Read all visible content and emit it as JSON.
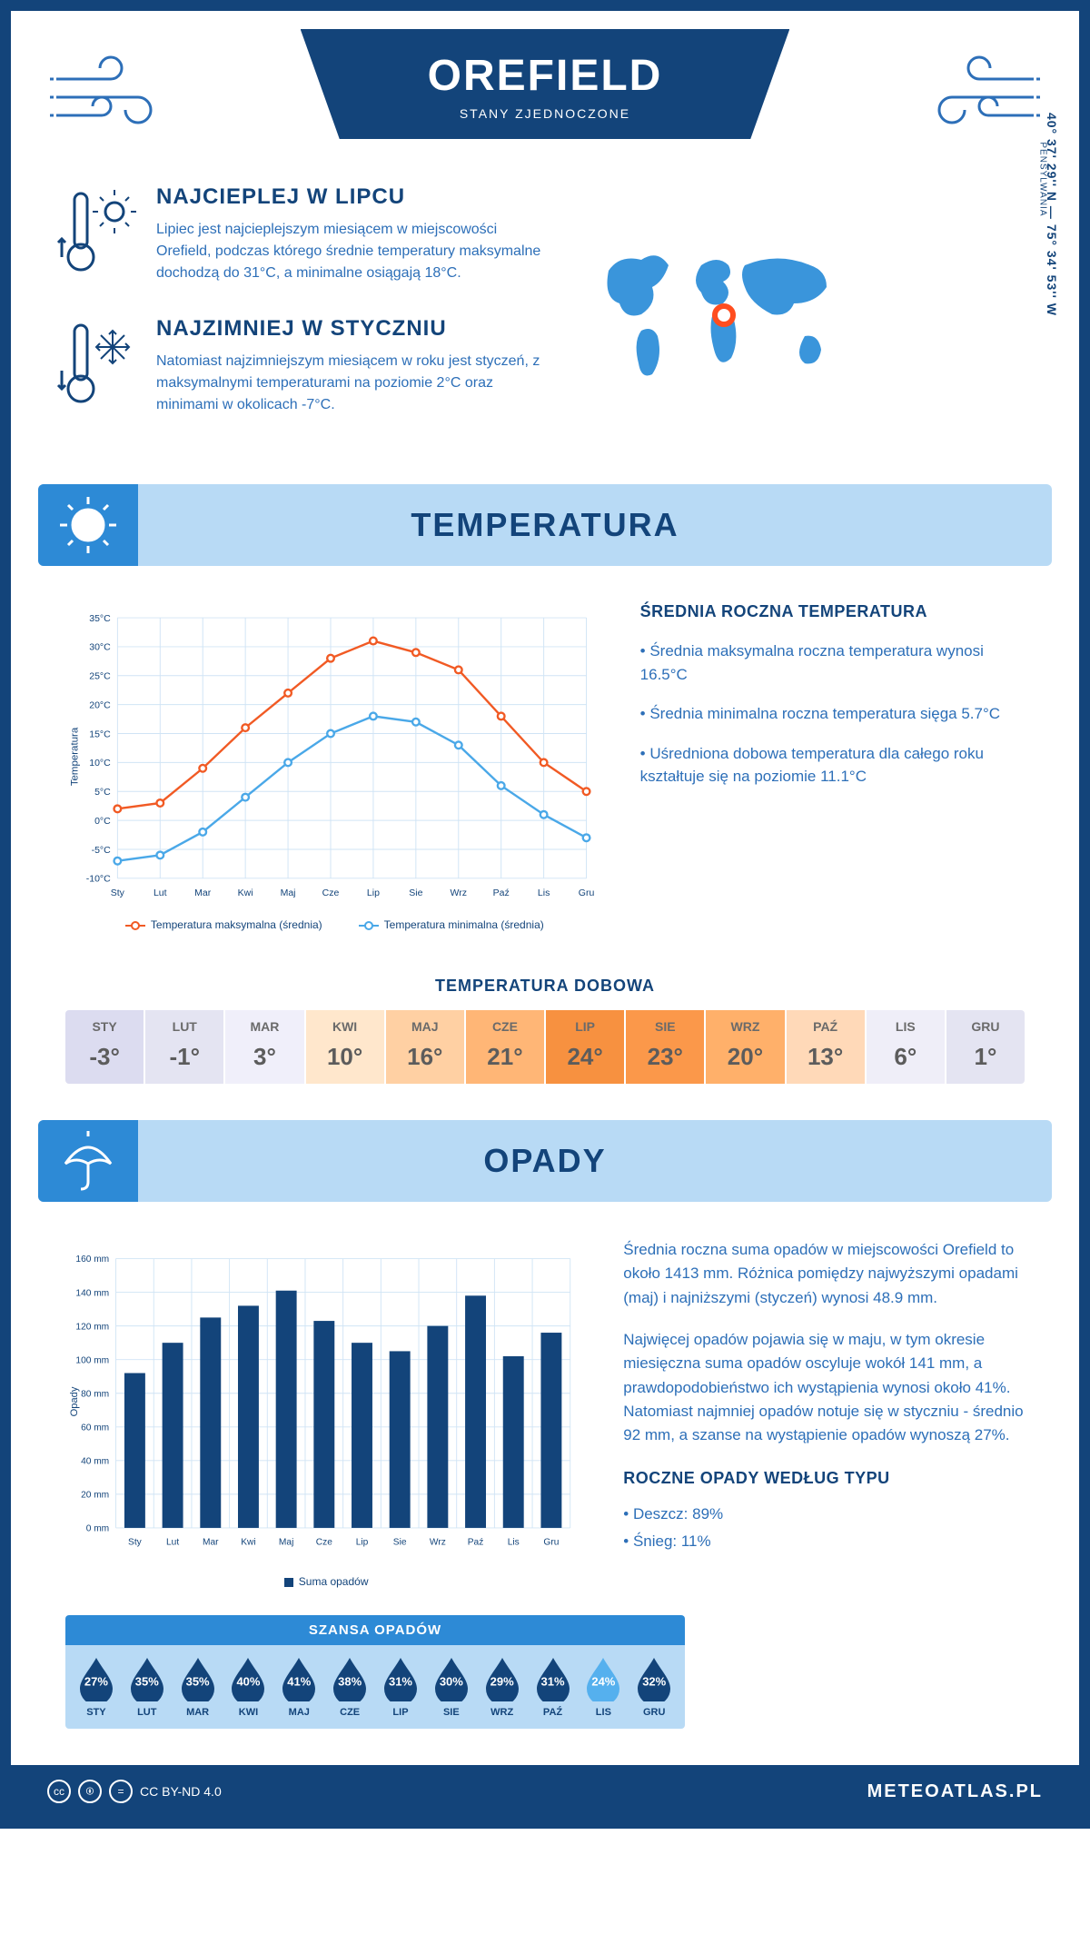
{
  "header": {
    "title": "OREFIELD",
    "subtitle": "STANY ZJEDNOCZONE"
  },
  "location": {
    "region_label": "PENSYLWANIA",
    "coords": "40° 37' 29'' N — 75° 34' 53'' W",
    "marker_color": "#ff4d1f"
  },
  "facts": {
    "warm": {
      "title": "NAJCIEPLEJ W LIPCU",
      "text": "Lipiec jest najcieplejszym miesiącem w miejscowości Orefield, podczas którego średnie temperatury maksymalne dochodzą do 31°C, a minimalne osiągają 18°C."
    },
    "cold": {
      "title": "NAJZIMNIEJ W STYCZNIU",
      "text": "Natomiast najzimniejszym miesiącem w roku jest styczeń, z maksymalnymi temperaturami na poziomie 2°C oraz minimami w okolicach -7°C."
    }
  },
  "months_short": [
    "Sty",
    "Lut",
    "Mar",
    "Kwi",
    "Maj",
    "Cze",
    "Lip",
    "Sie",
    "Wrz",
    "Paź",
    "Lis",
    "Gru"
  ],
  "months_upper": [
    "STY",
    "LUT",
    "MAR",
    "KWI",
    "MAJ",
    "CZE",
    "LIP",
    "SIE",
    "WRZ",
    "PAŹ",
    "LIS",
    "GRU"
  ],
  "temp_section": {
    "heading": "TEMPERATURA",
    "side_title": "ŚREDNIA ROCZNA TEMPERATURA",
    "bullets": [
      "• Średnia maksymalna roczna temperatura wynosi 16.5°C",
      "• Średnia minimalna roczna temperatura sięga 5.7°C",
      "• Uśredniona dobowa temperatura dla całego roku kształtuje się na poziomie 11.1°C"
    ],
    "chart": {
      "type": "line",
      "y_title": "Temperatura",
      "y_min": -10,
      "y_max": 35,
      "y_step": 5,
      "y_suffix": "°C",
      "max_series": {
        "label": "Temperatura maksymalna (średnia)",
        "color": "#f15a24",
        "values": [
          2,
          3,
          9,
          16,
          22,
          28,
          31,
          29,
          26,
          18,
          10,
          5
        ]
      },
      "min_series": {
        "label": "Temperatura minimalna (średnia)",
        "color": "#4aa8e8",
        "values": [
          -7,
          -6,
          -2,
          4,
          10,
          15,
          18,
          17,
          13,
          6,
          1,
          -3
        ]
      },
      "grid_color": "#d0e4f5",
      "background": "#ffffff"
    }
  },
  "daily_temp": {
    "title": "TEMPERATURA DOBOWA",
    "values": [
      "-3°",
      "-1°",
      "3°",
      "10°",
      "16°",
      "21°",
      "24°",
      "23°",
      "20°",
      "13°",
      "6°",
      "1°"
    ],
    "bg_colors": [
      "#dcdcf0",
      "#e4e4f2",
      "#f0effa",
      "#ffe7cc",
      "#ffd0a3",
      "#ffb676",
      "#f79140",
      "#fb984a",
      "#ffb06a",
      "#ffd9b8",
      "#efeef8",
      "#e4e4f2"
    ]
  },
  "precip_section": {
    "heading": "OPADY",
    "para1": "Średnia roczna suma opadów w miejscowości Orefield to około 1413 mm. Różnica pomiędzy najwyższymi opadami (maj) i najniższymi (styczeń) wynosi 48.9 mm.",
    "para2": "Najwięcej opadów pojawia się w maju, w tym okresie miesięczna suma opadów oscyluje wokół 141 mm, a prawdopodobieństwo ich wystąpienia wynosi około 41%. Natomiast najmniej opadów notuje się w styczniu - średnio 92 mm, a szanse na wystąpienie opadów wynoszą 27%.",
    "chart": {
      "type": "bar",
      "y_title": "Opady",
      "y_min": 0,
      "y_max": 160,
      "y_step": 20,
      "y_suffix": " mm",
      "values": [
        92,
        110,
        125,
        132,
        141,
        123,
        110,
        105,
        120,
        138,
        102,
        116
      ],
      "bar_color": "#13447a",
      "grid_color": "#d0e4f5",
      "legend_label": "Suma opadów"
    },
    "chance": {
      "title": "SZANSA OPADÓW",
      "values": [
        27,
        35,
        35,
        40,
        41,
        38,
        31,
        30,
        29,
        31,
        24,
        32
      ],
      "drop_dark": "#13447a",
      "drop_light": "#55b0ee",
      "min_index": 10
    },
    "types": {
      "title": "ROCZNE OPADY WEDŁUG TYPU",
      "rain": "• Deszcz: 89%",
      "snow": "• Śnieg: 11%"
    }
  },
  "footer": {
    "license": "CC BY-ND 4.0",
    "brand": "METEOATLAS.PL"
  },
  "colors": {
    "primary": "#13447a",
    "accent": "#2d8ad6",
    "light": "#b8daf5"
  }
}
